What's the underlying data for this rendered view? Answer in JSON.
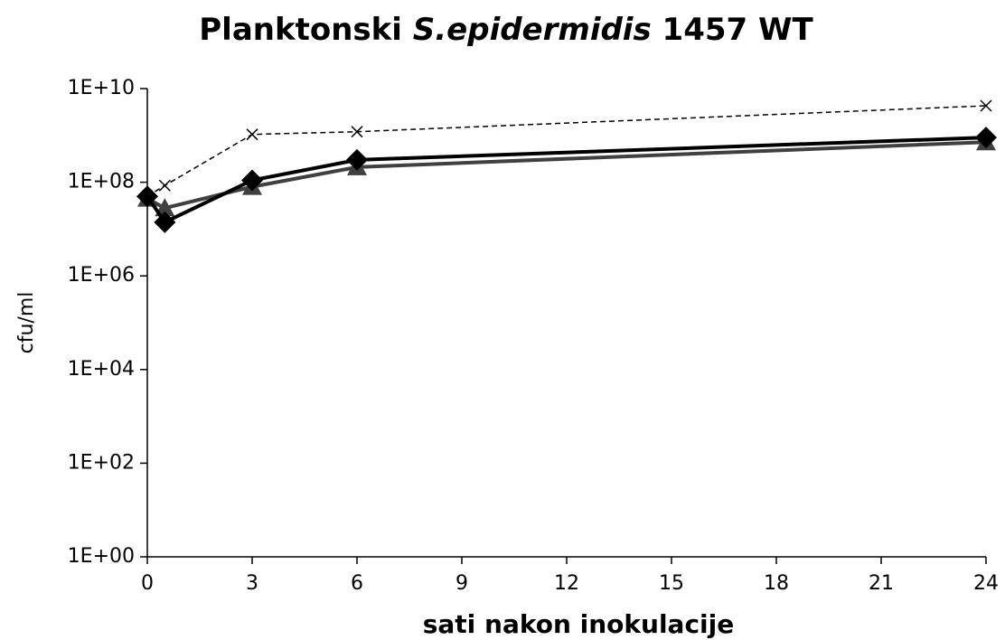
{
  "chart_data": {
    "type": "line",
    "title_parts": [
      "Planktonski",
      "S.epidermidis",
      "1457 WT"
    ],
    "title_italic": [
      false,
      true,
      false
    ],
    "x_label": "sati nakon inokulacije",
    "y_label": "cfu/ml",
    "x": [
      0,
      0.5,
      3,
      6,
      24
    ],
    "xlim": [
      0,
      24
    ],
    "xticks": [
      0,
      3,
      6,
      9,
      12,
      15,
      18,
      21,
      24
    ],
    "ylim": [
      1,
      10000000000
    ],
    "y_log": true,
    "yticks": [
      {
        "value": 1,
        "label": "1E+00"
      },
      {
        "value": 100,
        "label": "1E+02"
      },
      {
        "value": 10000,
        "label": "1E+04"
      },
      {
        "value": 1000000,
        "label": "1E+06"
      },
      {
        "value": 100000000,
        "label": "1E+08"
      },
      {
        "value": 10000000000,
        "label": "1E+10"
      }
    ],
    "series": [
      {
        "color": "#000000",
        "marker": "diamond",
        "dash": false,
        "values": [
          50000000,
          14000000,
          110000000,
          300000000,
          900000000
        ]
      },
      {
        "color": "#404040",
        "marker": "triangle",
        "dash": false,
        "values": [
          45000000,
          28000000,
          80000000,
          210000000,
          720000000
        ]
      },
      {
        "color": "#000000",
        "marker": "x",
        "dash": true,
        "values": [
          50000000,
          85000000,
          1050000000,
          1200000000,
          4300000000
        ]
      }
    ]
  }
}
